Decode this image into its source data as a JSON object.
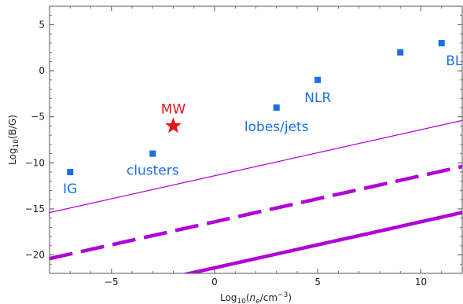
{
  "chart_data": {
    "type": "scatter",
    "title": "",
    "xlabel": {
      "prefix": "Log",
      "sub": "10",
      "open": "(",
      "n": "n",
      "nsub": "e",
      "unit": "/cm",
      "sup": "−3",
      "close": ")"
    },
    "ylabel": {
      "prefix": "Log",
      "sub": "10",
      "rest": "(B/G)"
    },
    "xlim": [
      -8,
      12
    ],
    "ylim": [
      -22,
      7
    ],
    "xticks": [
      -5,
      0,
      5,
      10
    ],
    "xtick_labels": [
      "−5",
      "0",
      "5",
      "10"
    ],
    "yticks": [
      5,
      0,
      -5,
      -10,
      -15,
      -20
    ],
    "ytick_labels": [
      "5",
      "0",
      "−5",
      "−10",
      "−15",
      "−20"
    ],
    "grid": false,
    "legend": "none",
    "points": [
      {
        "label": "IG",
        "x": -7,
        "y": -11,
        "color": "#1a6fe6",
        "marker": "square"
      },
      {
        "label": "clusters",
        "x": -3,
        "y": -9,
        "color": "#1a6fe6",
        "marker": "square"
      },
      {
        "label": "MW",
        "x": -2,
        "y": -6,
        "color": "#e8141c",
        "marker": "star"
      },
      {
        "label": "lobes/jets",
        "x": 3,
        "y": -4,
        "color": "#1a6fe6",
        "marker": "square"
      },
      {
        "label": "NLR",
        "x": 5,
        "y": -1,
        "color": "#1a6fe6",
        "marker": "square"
      },
      {
        "label": "",
        "x": 9,
        "y": 2,
        "color": "#1a6fe6",
        "marker": "square"
      },
      {
        "label": "BLR",
        "x": 11,
        "y": 3,
        "color": "#1a6fe6",
        "marker": "square"
      }
    ],
    "lines": [
      {
        "style": "thin",
        "slope": 0.5,
        "intercept": -11.4,
        "color": "#b000d8"
      },
      {
        "style": "dashed",
        "slope": 0.5,
        "intercept": -16.4,
        "color": "#b000d8"
      },
      {
        "style": "thick",
        "slope": 0.5,
        "intercept": -21.4,
        "color": "#b000d8"
      }
    ]
  }
}
